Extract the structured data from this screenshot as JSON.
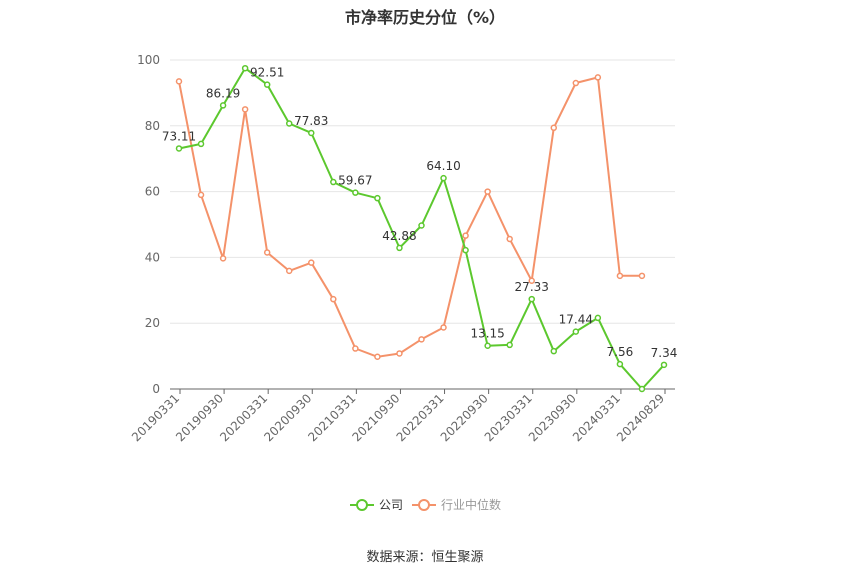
{
  "title": "市净率历史分位（%）",
  "source": "数据来源：恒生聚源",
  "chart_data": {
    "type": "line",
    "title": "市净率历史分位（%）",
    "xlabel": "",
    "ylabel": "",
    "ylim": [
      0,
      100
    ],
    "yticks": [
      0,
      20,
      40,
      60,
      80,
      100
    ],
    "grid": true,
    "legend_placement": "bottom",
    "x_tick_labels": [
      "20190331",
      "20190930",
      "20200331",
      "20200930",
      "20210331",
      "20210930",
      "20220331",
      "20220930",
      "20230331",
      "20230930",
      "20240331",
      "20240829"
    ],
    "series": [
      {
        "name": "公司",
        "color": "#5cc82e",
        "values": [
          73.11,
          74.5,
          86.19,
          97.5,
          92.51,
          80.7,
          77.83,
          62.9,
          59.67,
          58.0,
          42.88,
          49.7,
          64.1,
          42.2,
          13.15,
          13.4,
          27.33,
          11.5,
          17.44,
          21.6,
          7.56,
          0.0,
          7.34
        ]
      },
      {
        "name": "行业中位数",
        "color": "#f4926a",
        "values": [
          93.5,
          59.0,
          39.7,
          85.0,
          41.5,
          35.9,
          38.4,
          27.3,
          12.3,
          9.8,
          10.8,
          15.1,
          18.7,
          46.6,
          60.0,
          45.6,
          32.9,
          79.4,
          93.0,
          94.7,
          34.4,
          34.4,
          null
        ]
      }
    ],
    "data_labels": [
      {
        "series": 0,
        "index": 0,
        "text": "73.11"
      },
      {
        "series": 0,
        "index": 2,
        "text": "86.19"
      },
      {
        "series": 0,
        "index": 4,
        "text": "92.51"
      },
      {
        "series": 0,
        "index": 6,
        "text": "77.83"
      },
      {
        "series": 0,
        "index": 8,
        "text": "59.67"
      },
      {
        "series": 0,
        "index": 10,
        "text": "42.88"
      },
      {
        "series": 0,
        "index": 12,
        "text": "64.10"
      },
      {
        "series": 0,
        "index": 14,
        "text": "13.15"
      },
      {
        "series": 0,
        "index": 16,
        "text": "27.33"
      },
      {
        "series": 0,
        "index": 18,
        "text": "17.44"
      },
      {
        "series": 0,
        "index": 20,
        "text": "7.56"
      },
      {
        "series": 0,
        "index": 22,
        "text": "7.34"
      }
    ]
  }
}
